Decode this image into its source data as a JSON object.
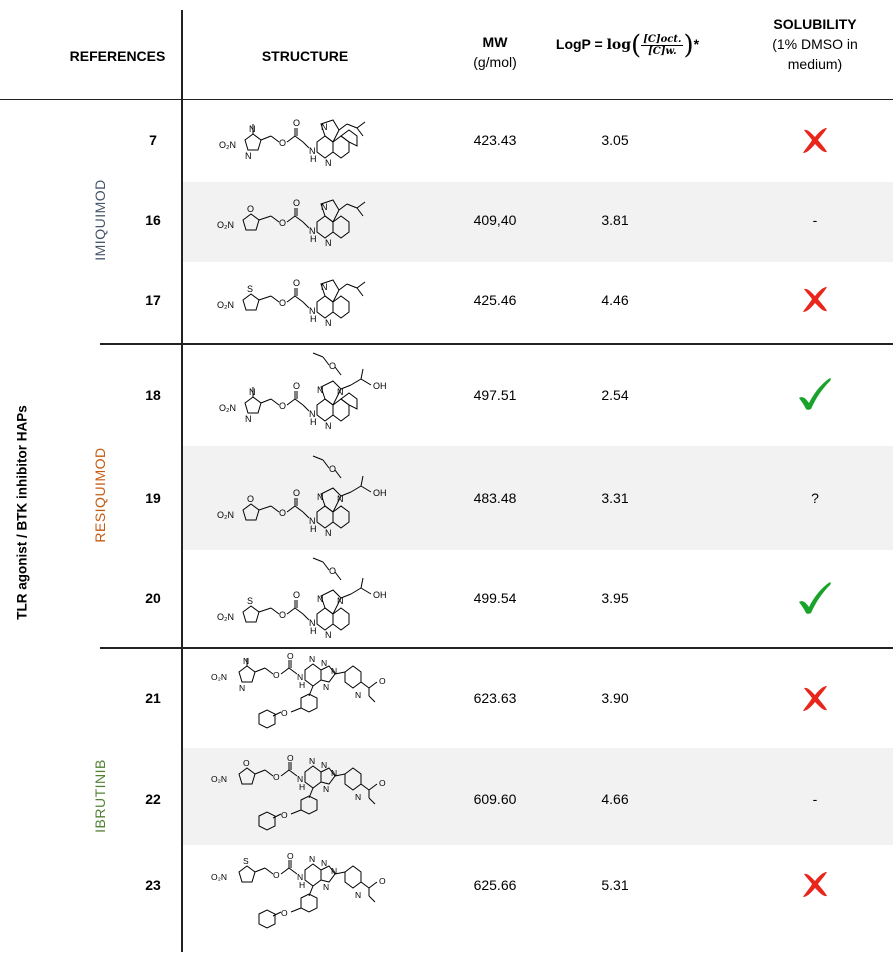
{
  "header": {
    "references": "REFERENCES",
    "structure": "STRUCTURE",
    "mw_title": "MW",
    "mw_unit": "(g/mol)",
    "logp_prefix": "LogP =",
    "logp_log": "log",
    "logp_num": "[C]oct.",
    "logp_den": "[C]w.",
    "logp_suffix": "*",
    "solubility_title": "SOLUBILITY",
    "solubility_sub1": "(1% DMSO in",
    "solubility_sub2": "medium)"
  },
  "side_label": "TLR agonist / BTK inhibitor HAPs",
  "groups": [
    {
      "label": "IMIQUIMOD",
      "color": "#44546a"
    },
    {
      "label": "RESIQUIMOD",
      "color": "#c55a11"
    },
    {
      "label": "IBRUTINIB",
      "color": "#538135"
    }
  ],
  "rows": [
    {
      "ref": "7",
      "mw": "423.43",
      "logp": "3.05",
      "solubility": "cross",
      "solubility_text": ""
    },
    {
      "ref": "16",
      "mw": "409,40",
      "logp": "3.81",
      "solubility": "dash",
      "solubility_text": "-"
    },
    {
      "ref": "17",
      "mw": "425.46",
      "logp": "4.46",
      "solubility": "cross",
      "solubility_text": ""
    },
    {
      "ref": "18",
      "mw": "497.51",
      "logp": "2.54",
      "solubility": "check",
      "solubility_text": ""
    },
    {
      "ref": "19",
      "mw": "483.48",
      "logp": "3.31",
      "solubility": "unknown",
      "solubility_text": "?"
    },
    {
      "ref": "20",
      "mw": "499.54",
      "logp": "3.95",
      "solubility": "check",
      "solubility_text": ""
    },
    {
      "ref": "21",
      "mw": "623.63",
      "logp": "3.90",
      "solubility": "cross",
      "solubility_text": ""
    },
    {
      "ref": "22",
      "mw": "609.60",
      "logp": "4.66",
      "solubility": "dash",
      "solubility_text": "-"
    },
    {
      "ref": "23",
      "mw": "625.66",
      "logp": "5.31",
      "solubility": "cross",
      "solubility_text": ""
    }
  ],
  "structure_labels": {
    "nitro": "O₂N",
    "oh": "OH",
    "nh": "H",
    "n": "N",
    "o": "O",
    "s": "S"
  },
  "colors": {
    "cross": "#e8261c",
    "check": "#1aa32a",
    "shade": "#f2f2f2"
  }
}
